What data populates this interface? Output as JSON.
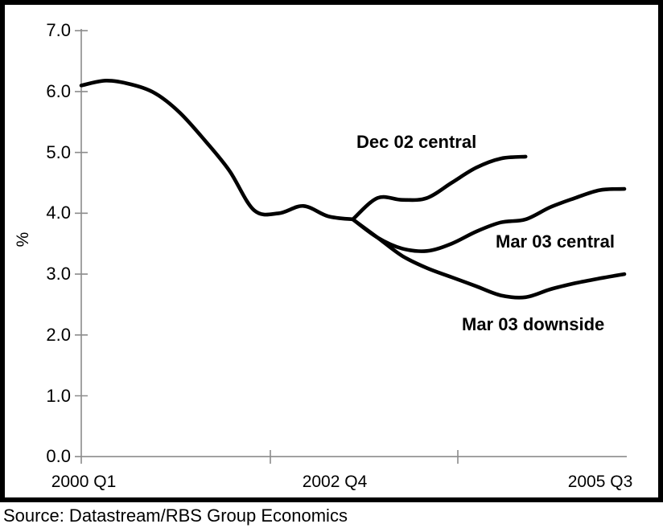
{
  "figure": {
    "source_line": "Source: Datastream/RBS Group Economics"
  },
  "chart_data": {
    "type": "line",
    "title": "",
    "ylabel": "%",
    "ylim": [
      0.0,
      7.0
    ],
    "ytick_step": 1.0,
    "ytick_labels": [
      "7.0",
      "6.0",
      "5.0",
      "4.0",
      "3.0",
      "2.0",
      "1.0",
      "0.0"
    ],
    "xtick_labels": [
      "2000 Q1",
      "2002 Q4",
      "2005 Q3"
    ],
    "x_unit": "quarter index (0 = 2000 Q1, 11 = 2002 Q4, 22 = 2005 Q3)",
    "grid": false,
    "legend_position": "inline-annotations",
    "colors": {
      "series_line": "#000000",
      "axis_line": "#8c8c8c",
      "text": "#000000",
      "background": "#ffffff"
    },
    "series": [
      {
        "name": "History (actual, unlabeled)",
        "label_visible": false,
        "x": [
          0,
          1,
          2,
          3,
          4,
          5,
          6,
          7,
          8,
          9,
          10,
          11
        ],
        "values": [
          6.1,
          6.18,
          6.12,
          5.97,
          5.65,
          5.2,
          4.7,
          4.05,
          4.0,
          4.12,
          3.95,
          3.9
        ]
      },
      {
        "name": "Dec 02 central",
        "label_visible": true,
        "x": [
          11,
          12,
          13,
          14,
          15,
          16,
          17,
          18
        ],
        "values": [
          3.9,
          4.25,
          4.22,
          4.25,
          4.5,
          4.75,
          4.9,
          4.93
        ]
      },
      {
        "name": "Mar 03 central",
        "label_visible": true,
        "x": [
          11,
          12,
          13,
          14,
          15,
          16,
          17,
          18,
          19,
          20,
          21,
          22
        ],
        "values": [
          3.9,
          3.6,
          3.42,
          3.38,
          3.5,
          3.7,
          3.85,
          3.9,
          4.1,
          4.25,
          4.38,
          4.4
        ]
      },
      {
        "name": "Mar 03 downside",
        "label_visible": true,
        "x": [
          11,
          12,
          13,
          14,
          15,
          16,
          17,
          18,
          19,
          20,
          21,
          22
        ],
        "values": [
          3.9,
          3.6,
          3.3,
          3.1,
          2.95,
          2.8,
          2.65,
          2.62,
          2.75,
          2.85,
          2.93,
          3.0
        ]
      }
    ]
  }
}
